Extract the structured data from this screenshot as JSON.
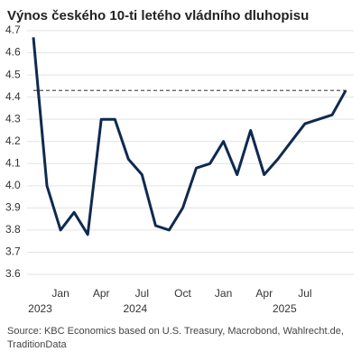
{
  "chart_data": {
    "type": "line",
    "title": "Výnos českého 10-ti letého vládního dluhopisu",
    "x": [
      "2023-11",
      "2023-12",
      "2024-01",
      "2024-02",
      "2024-03",
      "2024-04",
      "2024-05",
      "2024-06",
      "2024-07",
      "2024-08",
      "2024-09",
      "2024-10",
      "2024-11",
      "2024-12",
      "2025-01",
      "2025-02",
      "2025-03",
      "2025-04",
      "2025-05",
      "2025-06",
      "2025-07",
      "2025-08",
      "2025-09",
      "2025-10"
    ],
    "series": [
      {
        "name": "Výnos",
        "color": "#0f2a50",
        "values": [
          4.67,
          4.0,
          3.8,
          3.88,
          3.78,
          4.3,
          4.3,
          4.12,
          4.05,
          3.82,
          3.8,
          3.9,
          4.08,
          4.1,
          4.2,
          4.05,
          4.25,
          4.05,
          4.12,
          4.2,
          4.28,
          4.3,
          4.32,
          4.43
        ]
      }
    ],
    "xlim": [
      "2023-11",
      "2025-10"
    ],
    "xticks": [
      {
        "value": "2024-01",
        "label": "Jan"
      },
      {
        "value": "2024-04",
        "label": "Apr"
      },
      {
        "value": "2024-07",
        "label": "Jul"
      },
      {
        "value": "2024-10",
        "label": "Oct"
      },
      {
        "value": "2025-01",
        "label": "Jan"
      },
      {
        "value": "2025-04",
        "label": "Apr"
      },
      {
        "value": "2025-07",
        "label": "Jul"
      }
    ],
    "year_labels": [
      "2023",
      "2024",
      "2025"
    ],
    "ylim": [
      3.6,
      4.7
    ],
    "yticks": [
      3.6,
      3.7,
      3.8,
      3.9,
      {
        "value": 4,
        "label": "4.0"
      },
      4.1,
      4.2,
      4.3,
      4.4,
      4.5,
      4.6,
      4.7
    ],
    "reference_line": 4.43,
    "grid": true,
    "source": "Source: KBC Economics based on U.S. Treasury, Macrobond, Wahlrecht.de, TraditionData"
  }
}
